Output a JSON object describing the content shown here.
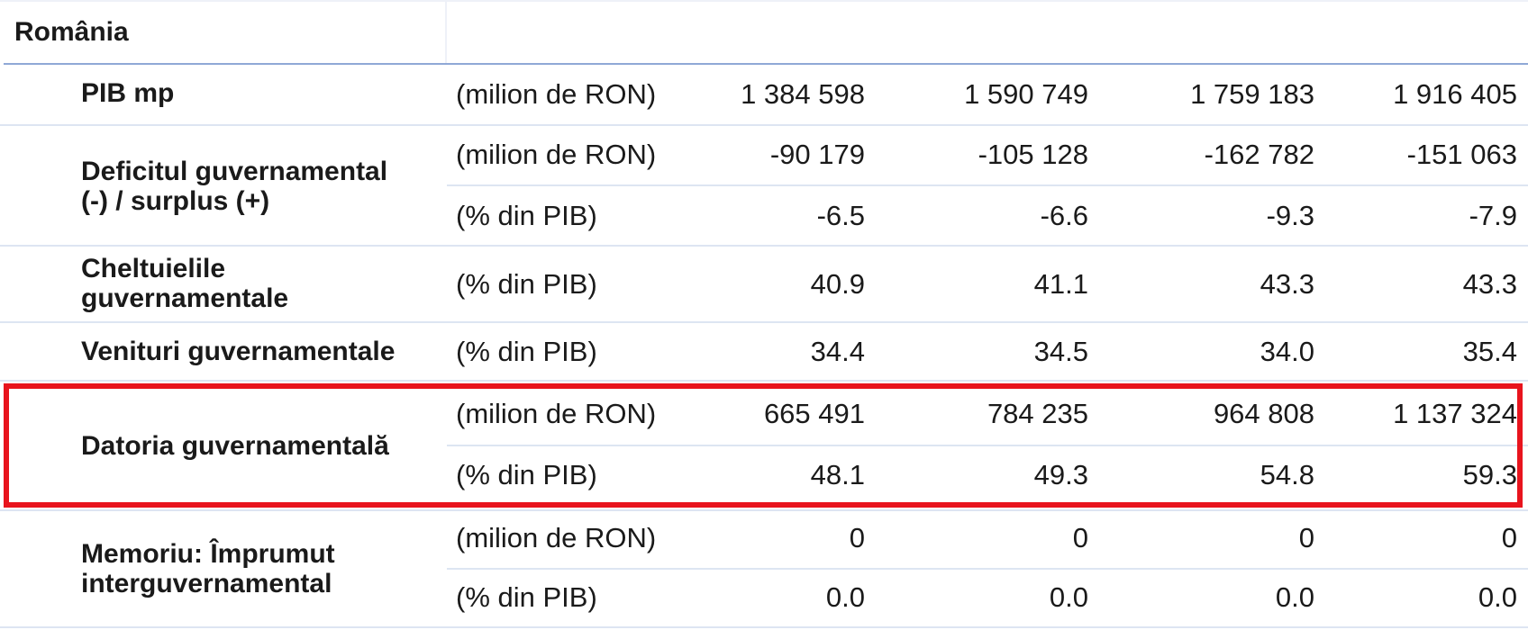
{
  "country": "România",
  "rows": {
    "pib": {
      "label": "PIB mp",
      "unit": "(milion de RON)",
      "values": [
        "1 384 598",
        "1 590 749",
        "1 759 183",
        "1 916 405"
      ]
    },
    "deficit": {
      "label_line1": "Deficitul guvernamental",
      "label_line2": "(-) / surplus (+)",
      "sub": [
        {
          "unit": "(milion de RON)",
          "values": [
            "-90 179",
            "-105 128",
            "-162 782",
            "-151 063"
          ]
        },
        {
          "unit": "(% din PIB)",
          "values": [
            "-6.5",
            "-6.6",
            "-9.3",
            "-7.9"
          ]
        }
      ]
    },
    "cheltuieli": {
      "label_line1": "Cheltuielile",
      "label_line2": "guvernamentale",
      "unit": "(% din PIB)",
      "values": [
        "40.9",
        "41.1",
        "43.3",
        "43.3"
      ]
    },
    "venituri": {
      "label": "Venituri guvernamentale",
      "unit": "(% din PIB)",
      "values": [
        "34.4",
        "34.5",
        "34.0",
        "35.4"
      ]
    },
    "datoria": {
      "label": "Datoria guvernamentală",
      "sub": [
        {
          "unit": "(milion de RON)",
          "values": [
            "665 491",
            "784 235",
            "964 808",
            "1 137 324"
          ]
        },
        {
          "unit": "(% din PIB)",
          "values": [
            "48.1",
            "49.3",
            "54.8",
            "59.3"
          ]
        }
      ]
    },
    "memoriu": {
      "label_line1": "Memoriu: Împrumut",
      "label_line2": "interguvernamental",
      "sub": [
        {
          "unit": "(milion de RON)",
          "values": [
            "0",
            "0",
            "0",
            "0"
          ]
        },
        {
          "unit": "(% din PIB)",
          "values": [
            "0.0",
            "0.0",
            "0.0",
            "0.0"
          ]
        }
      ]
    }
  },
  "colors": {
    "highlight": "#e8141d",
    "header_rule": "#8fa8d6",
    "row_rule": "#dde5f2"
  }
}
